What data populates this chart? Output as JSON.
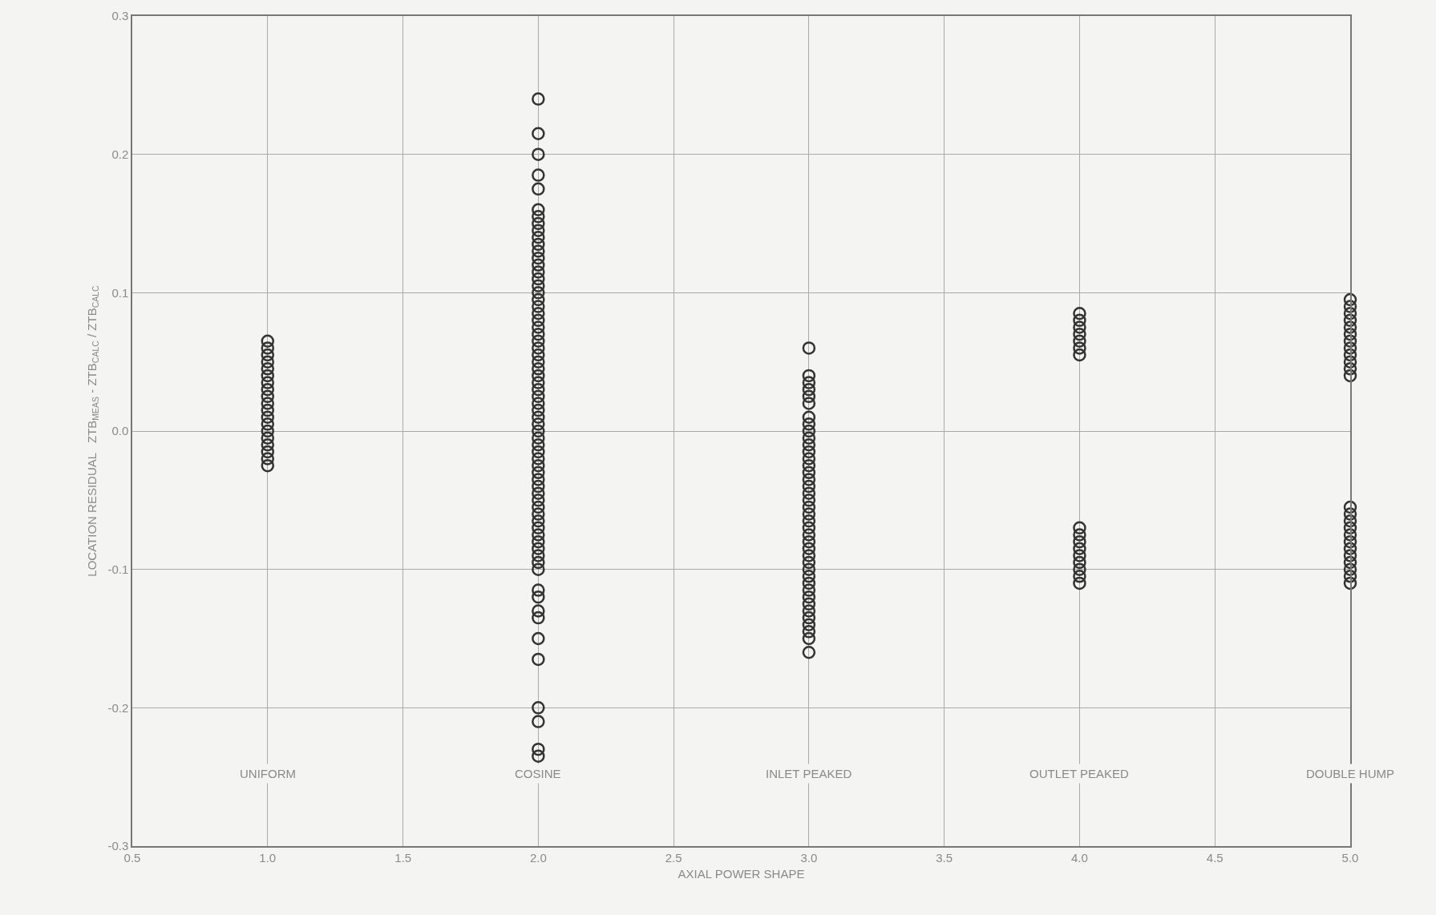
{
  "chart_data": {
    "type": "scatter",
    "xlabel": "AXIAL POWER SHAPE",
    "ylabel": "LOCATION RESIDUAL   ZTB$_{MEAS}$ - ZTB$_{CALC}$ / ZTB$_{CALC}$",
    "xlim": [
      0.5,
      5.0
    ],
    "xticks": [
      0.5,
      {
        "value": 1,
        "label": "1.0"
      },
      1.5,
      {
        "value": 2,
        "label": "2.0"
      },
      2.5,
      {
        "value": 3,
        "label": "3.0"
      },
      3.5,
      {
        "value": 4,
        "label": "4.0"
      },
      4.5,
      {
        "value": 5,
        "label": "5.0"
      }
    ],
    "ylim": [
      -0.3,
      0.3
    ],
    "yticks": [
      -0.3,
      -0.2,
      -0.1,
      {
        "value": 0,
        "label": "0.0"
      },
      0.1,
      0.2,
      0.3
    ],
    "grid": true,
    "marker": "circle",
    "series": [
      {
        "color": "#333333",
        "x": [
          1,
          1,
          1,
          1,
          1,
          1,
          1,
          1,
          1,
          1,
          1,
          1,
          1,
          1,
          1,
          1,
          1,
          1,
          1
        ],
        "values": [
          -0.025,
          -0.02,
          -0.015,
          -0.01,
          -0.005,
          0,
          0.005,
          0.01,
          0.015,
          0.02,
          0.025,
          0.03,
          0.035,
          0.04,
          0.045,
          0.05,
          0.055,
          0.06,
          0.065
        ]
      },
      {
        "color": "#333333",
        "x": [
          2,
          2,
          2,
          2,
          2,
          2,
          2,
          2,
          2,
          2,
          2,
          2,
          2,
          2,
          2,
          2,
          2,
          2,
          2,
          2,
          2,
          2,
          2,
          2,
          2,
          2,
          2,
          2,
          2,
          2,
          2,
          2,
          2,
          2,
          2,
          2,
          2,
          2,
          2,
          2,
          2,
          2,
          2,
          2,
          2,
          2,
          2,
          2,
          2,
          2,
          2,
          2,
          2,
          2,
          2,
          2,
          2,
          2,
          2,
          2,
          2,
          2,
          2,
          2,
          2,
          2,
          2,
          2
        ],
        "values": [
          0.24,
          0.215,
          0.2,
          0.185,
          0.175,
          0.16,
          0.155,
          0.15,
          0.145,
          0.14,
          0.135,
          0.13,
          0.125,
          0.12,
          0.115,
          0.11,
          0.105,
          0.1,
          0.095,
          0.09,
          0.085,
          0.08,
          0.075,
          0.07,
          0.065,
          0.06,
          0.055,
          0.05,
          0.045,
          0.04,
          0.035,
          0.03,
          0.025,
          0.02,
          0.015,
          0.01,
          0.005,
          0,
          -0.005,
          -0.01,
          -0.015,
          -0.02,
          -0.025,
          -0.03,
          -0.035,
          -0.04,
          -0.045,
          -0.05,
          -0.055,
          -0.06,
          -0.065,
          -0.07,
          -0.075,
          -0.08,
          -0.085,
          -0.09,
          -0.095,
          -0.1,
          -0.115,
          -0.12,
          -0.13,
          -0.135,
          -0.15,
          -0.165,
          -0.2,
          -0.21,
          -0.23,
          -0.235
        ]
      },
      {
        "color": "#333333",
        "x": [
          3,
          3,
          3,
          3,
          3,
          3,
          3,
          3,
          3,
          3,
          3,
          3,
          3,
          3,
          3,
          3,
          3,
          3,
          3,
          3,
          3,
          3,
          3,
          3,
          3,
          3,
          3,
          3,
          3,
          3,
          3,
          3,
          3,
          3,
          3,
          3,
          3,
          3,
          3,
          3
        ],
        "values": [
          0.06,
          0.04,
          0.035,
          0.03,
          0.025,
          0.02,
          0.01,
          0.005,
          0,
          -0.005,
          -0.01,
          -0.015,
          -0.02,
          -0.025,
          -0.03,
          -0.035,
          -0.04,
          -0.045,
          -0.05,
          -0.055,
          -0.06,
          -0.065,
          -0.07,
          -0.075,
          -0.08,
          -0.085,
          -0.09,
          -0.095,
          -0.1,
          -0.105,
          -0.11,
          -0.115,
          -0.12,
          -0.125,
          -0.13,
          -0.135,
          -0.14,
          -0.145,
          -0.15,
          -0.16
        ]
      },
      {
        "color": "#333333",
        "x": [
          4,
          4,
          4,
          4,
          4,
          4,
          4,
          4,
          4,
          4,
          4,
          4,
          4,
          4,
          4,
          4
        ],
        "values": [
          0.085,
          0.08,
          0.075,
          0.07,
          0.065,
          0.06,
          0.055,
          -0.07,
          -0.075,
          -0.08,
          -0.085,
          -0.09,
          -0.095,
          -0.1,
          -0.105,
          -0.11
        ]
      },
      {
        "color": "#333333",
        "x": [
          5,
          5,
          5,
          5,
          5,
          5,
          5,
          5,
          5,
          5,
          5,
          5,
          5,
          5,
          5,
          5,
          5,
          5,
          5,
          5,
          5,
          5,
          5,
          5
        ],
        "values": [
          0.095,
          0.09,
          0.085,
          0.08,
          0.075,
          0.07,
          0.065,
          0.06,
          0.055,
          0.05,
          0.045,
          0.04,
          -0.055,
          -0.06,
          -0.065,
          -0.07,
          -0.075,
          -0.08,
          -0.085,
          -0.09,
          -0.095,
          -0.1,
          -0.105,
          -0.11
        ]
      }
    ],
    "annotations": [
      "UNIFORM",
      "COSINE",
      "INLET PEAKED",
      "OUTLET PEAKED",
      "DOUBLE HUMP"
    ]
  }
}
